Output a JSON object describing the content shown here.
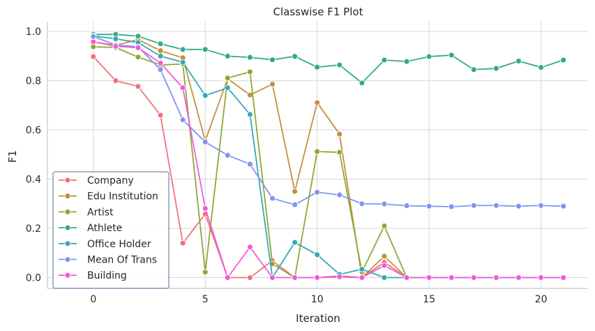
{
  "chart_data": {
    "type": "line",
    "title": "Classwise F1 Plot",
    "xlabel": "Iteration",
    "ylabel": "F1",
    "xlim": [
      -2.05,
      22.1
    ],
    "ylim": [
      -0.044,
      1.04
    ],
    "xticks": [
      0,
      5,
      10,
      15,
      20
    ],
    "yticks": [
      0.0,
      0.2,
      0.4,
      0.6,
      0.8,
      1.0
    ],
    "xtick_labels": [
      "0",
      "5",
      "10",
      "15",
      "20"
    ],
    "ytick_labels": [
      "0.0",
      "0.2",
      "0.4",
      "0.6",
      "0.8",
      "1.0"
    ],
    "grid": true,
    "legend_position": "lower-left",
    "series": [
      {
        "name": "Company",
        "color": "#f0727e",
        "x": [
          0,
          1,
          2,
          3,
          4,
          5,
          6,
          7,
          8,
          9,
          10,
          11,
          12,
          13,
          14,
          15,
          16,
          17,
          18,
          19,
          20,
          21
        ],
        "values": [
          0.898,
          0.8,
          0.777,
          0.66,
          0.14,
          0.258,
          0.0,
          0.0,
          0.068,
          0.0,
          0.0,
          0.007,
          0.0,
          0.062,
          0.0,
          0.0,
          0.0,
          0.0,
          0.0,
          0.0,
          0.0,
          0.0
        ]
      },
      {
        "name": "Edu Institution",
        "color": "#c58f3c",
        "x": [
          0,
          1,
          2,
          3,
          4,
          5,
          6,
          7,
          8,
          9,
          10,
          11,
          12,
          13,
          14,
          15,
          16,
          17,
          18,
          19,
          20,
          21
        ],
        "values": [
          0.958,
          0.944,
          0.967,
          0.922,
          0.893,
          0.556,
          0.808,
          0.742,
          0.786,
          0.35,
          0.711,
          0.583,
          0.0,
          0.087,
          0.0,
          0.0,
          0.0,
          0.0,
          0.0,
          0.0,
          0.0,
          0.0
        ]
      },
      {
        "name": "Artist",
        "color": "#8ea835",
        "x": [
          0,
          1,
          2,
          3,
          4,
          5,
          6,
          7,
          8,
          9,
          10,
          11,
          12,
          13,
          14,
          15,
          16,
          17,
          18,
          19,
          20,
          21
        ],
        "values": [
          0.938,
          0.935,
          0.896,
          0.864,
          0.868,
          0.022,
          0.811,
          0.836,
          0.056,
          0.0,
          0.512,
          0.509,
          0.023,
          0.21,
          0.0,
          0.0,
          0.0,
          0.0,
          0.0,
          0.0,
          0.0,
          0.0
        ]
      },
      {
        "name": "Athlete",
        "color": "#33ab84",
        "x": [
          0,
          1,
          2,
          3,
          4,
          5,
          6,
          7,
          8,
          9,
          10,
          11,
          12,
          13,
          14,
          15,
          16,
          17,
          18,
          19,
          20,
          21
        ],
        "values": [
          0.988,
          0.988,
          0.981,
          0.95,
          0.927,
          0.927,
          0.9,
          0.895,
          0.885,
          0.899,
          0.855,
          0.864,
          0.791,
          0.884,
          0.878,
          0.898,
          0.904,
          0.845,
          0.85,
          0.88,
          0.854,
          0.884
        ]
      },
      {
        "name": "Office Holder",
        "color": "#36a8b6",
        "x": [
          0,
          1,
          2,
          3,
          4,
          5,
          6,
          7,
          8,
          9,
          10,
          11,
          12,
          13,
          14,
          15,
          16,
          17,
          18,
          19,
          20,
          21
        ],
        "values": [
          0.982,
          0.97,
          0.955,
          0.9,
          0.875,
          0.74,
          0.771,
          0.663,
          0.0,
          0.143,
          0.093,
          0.013,
          0.034,
          0.0,
          0.0,
          0.0,
          0.0,
          0.0,
          0.0,
          0.0,
          0.0,
          0.0
        ]
      },
      {
        "name": "Mean Of Trans",
        "color": "#8194f0",
        "x": [
          0,
          1,
          2,
          3,
          4,
          5,
          6,
          7,
          8,
          9,
          10,
          11,
          12,
          13,
          14,
          15,
          16,
          17,
          18,
          19,
          20,
          21
        ],
        "values": [
          0.98,
          0.945,
          0.938,
          0.845,
          0.641,
          0.551,
          0.497,
          0.461,
          0.322,
          0.296,
          0.347,
          0.336,
          0.3,
          0.299,
          0.292,
          0.29,
          0.288,
          0.293,
          0.293,
          0.29,
          0.293,
          0.29
        ]
      },
      {
        "name": "Building",
        "color": "#f25ad9",
        "x": [
          0,
          1,
          2,
          3,
          4,
          5,
          6,
          7,
          8,
          9,
          10,
          11,
          12,
          13,
          14,
          15,
          16,
          17,
          18,
          19,
          20,
          21
        ],
        "values": [
          0.958,
          0.94,
          0.934,
          0.872,
          0.771,
          0.281,
          0.0,
          0.124,
          0.0,
          0.0,
          0.0,
          0.003,
          0.0,
          0.049,
          0.0,
          0.0,
          0.0,
          0.0,
          0.0,
          0.0,
          0.0,
          0.0
        ]
      }
    ]
  }
}
